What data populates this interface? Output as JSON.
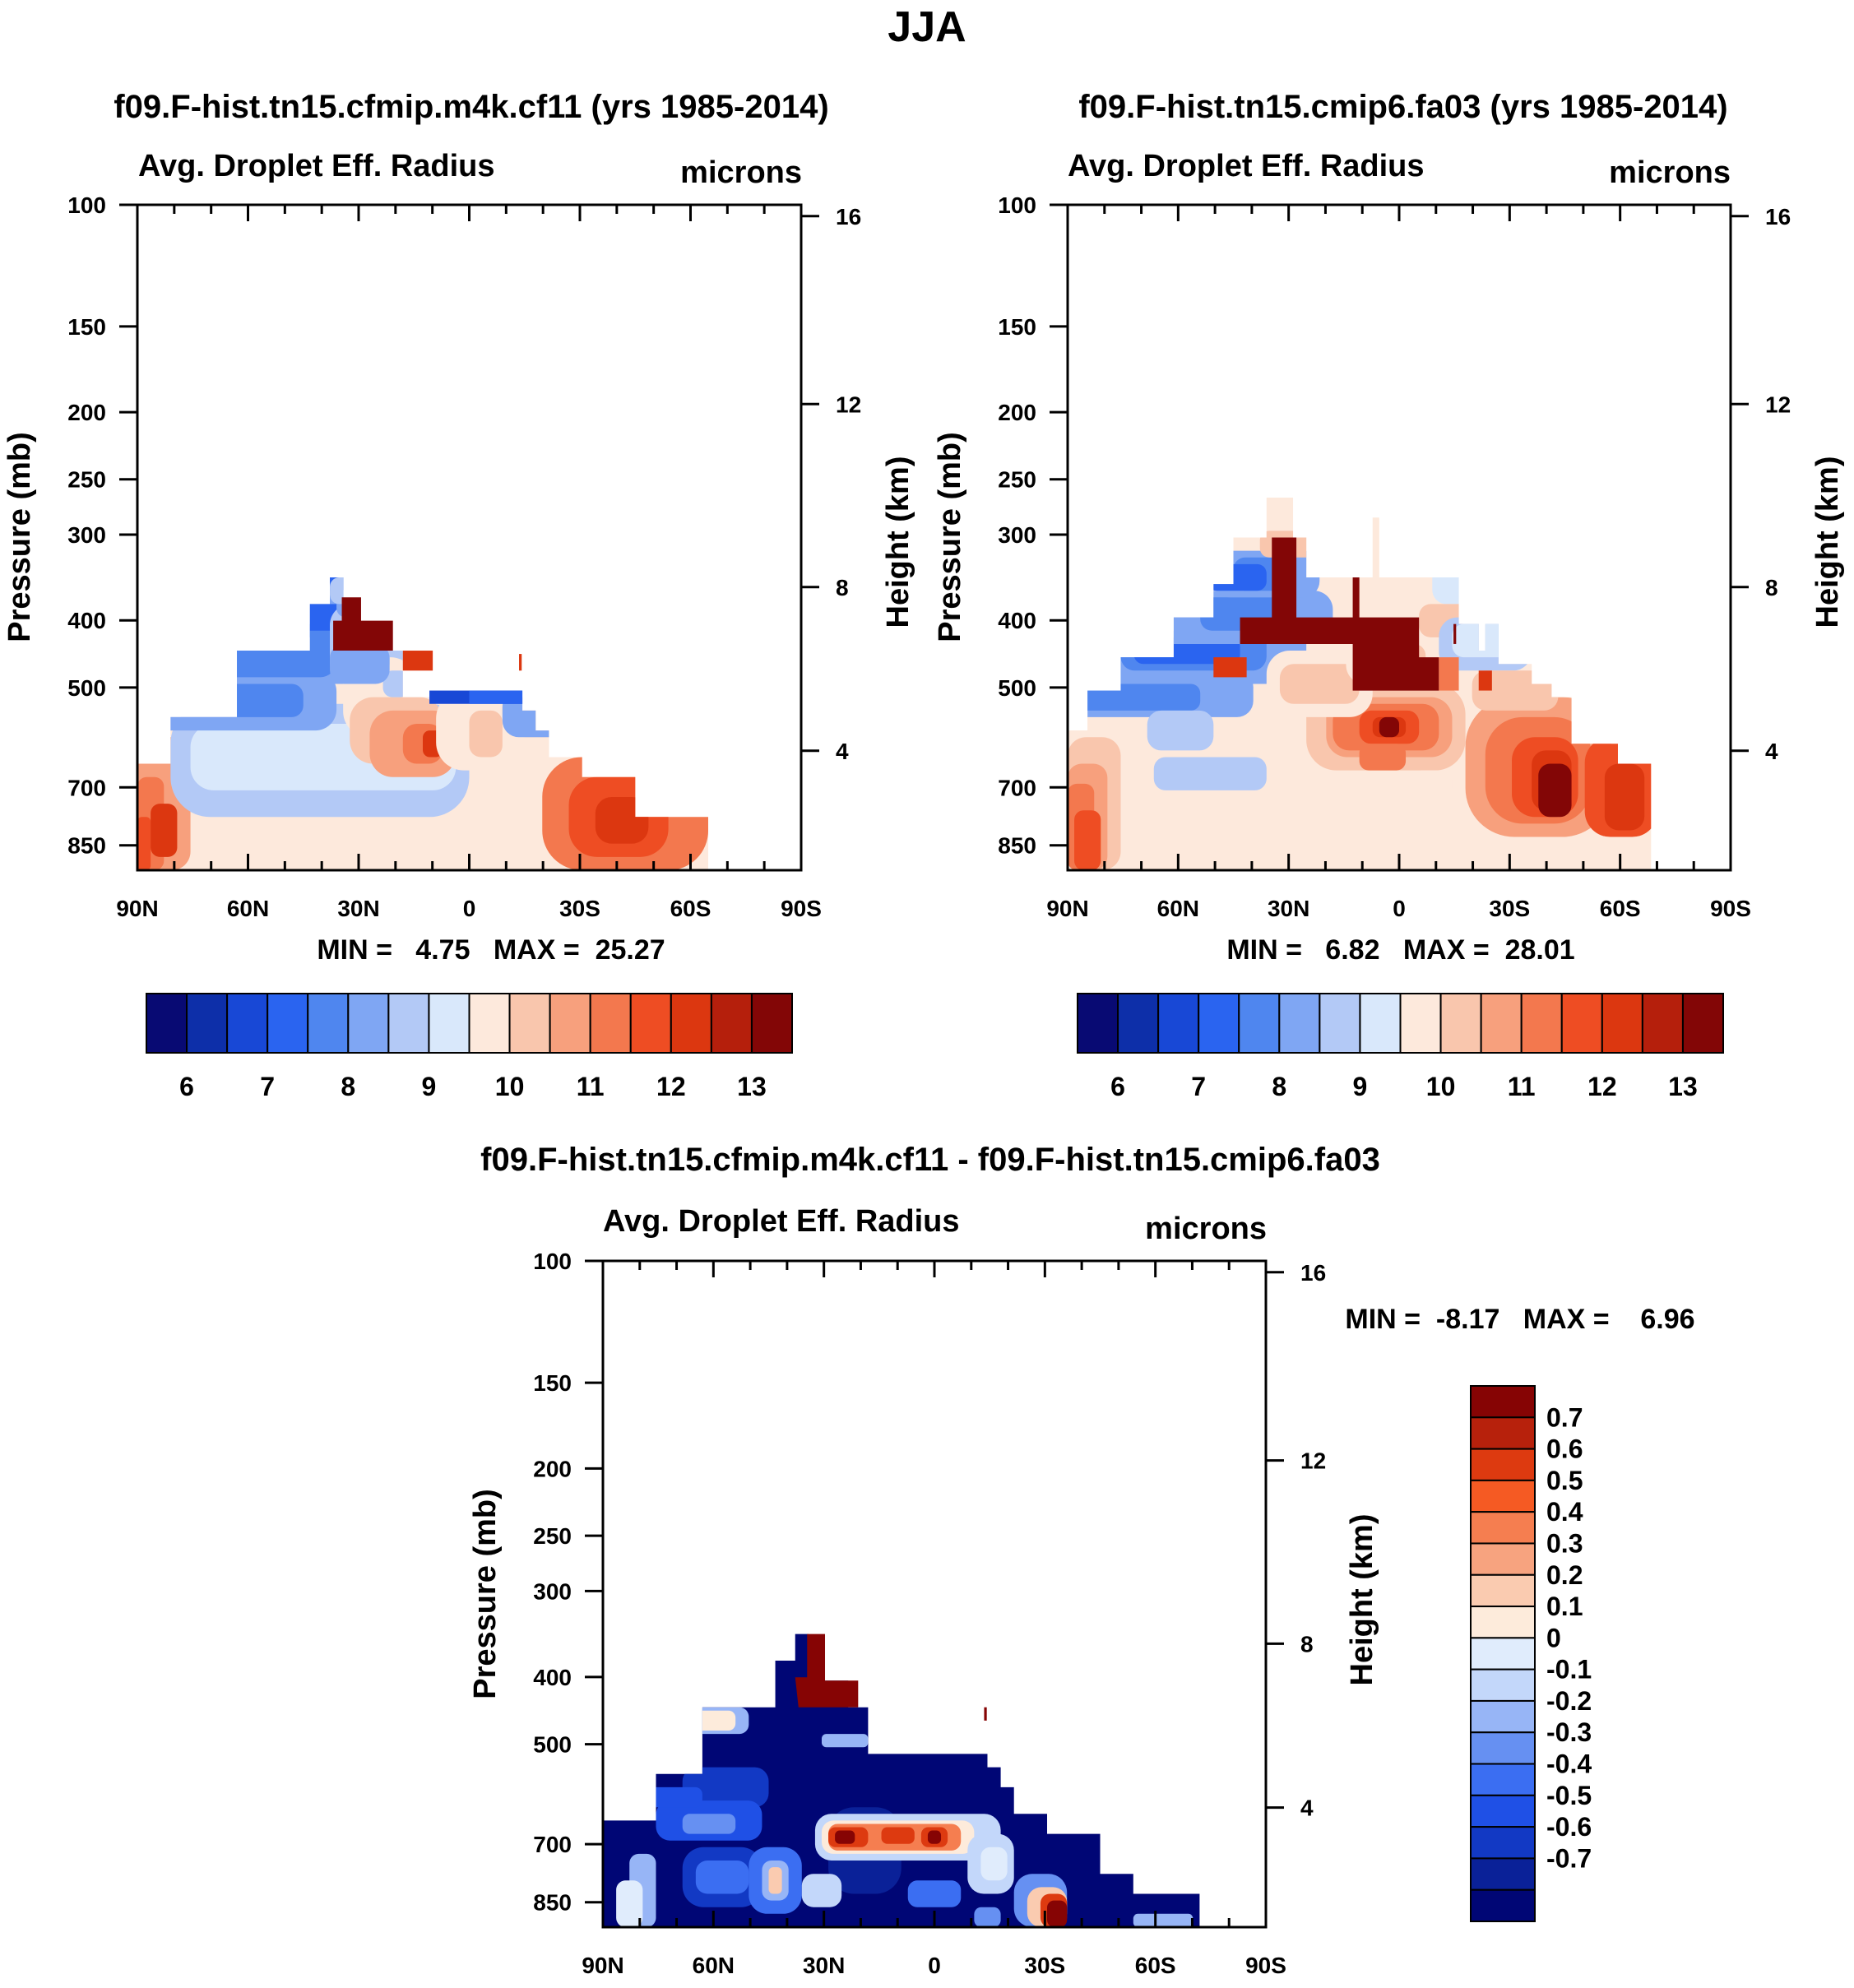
{
  "title": "JJA",
  "colors": {
    "absolute_scale": [
      "#080a73",
      "#0d2fa9",
      "#1848d6",
      "#2a64f0",
      "#4f86ef",
      "#7fa6f3",
      "#b3c9f6",
      "#d9e8fb",
      "#fde9dc",
      "#f9c6ad",
      "#f7a07d",
      "#f3784e",
      "#ee4d23",
      "#dc3710",
      "#b51f0c",
      "#830606"
    ],
    "diff_scale": [
      "#000675",
      "#0a2198",
      "#1239c4",
      "#1f50e6",
      "#3b6ef2",
      "#6690f2",
      "#97b5f6",
      "#c3d7fa",
      "#e0ecfc",
      "#fdebdb",
      "#facbb0",
      "#f7a37f",
      "#f57e50",
      "#f55a23",
      "#dd3a10",
      "#b7210c",
      "#860404"
    ]
  },
  "chart_data": [
    {
      "type": "heatmap",
      "title": "f09.F-hist.tn15.cfmip.m4k.cf11 (yrs 1985-2014)",
      "left_label": "Avg. Droplet Eff. Radius",
      "right_label": "microns",
      "xlabel": "",
      "ylabel": "Pressure (mb)",
      "ylabel_right": "Height (km)",
      "x_ticks": [
        "90N",
        "60N",
        "30N",
        "0",
        "30S",
        "60S",
        "90S"
      ],
      "y_ticks": [
        "100",
        "150",
        "200",
        "250",
        "300",
        "400",
        "500",
        "700",
        "850"
      ],
      "right_ticks": [
        "16",
        "12",
        "8",
        "4"
      ],
      "min_max_text": "MIN =   4.75   MAX =  25.27",
      "colorbar_labels": [
        "6",
        "7",
        "8",
        "9",
        "10",
        "11",
        "12",
        "13"
      ],
      "min": 4.75,
      "max": 25.27
    },
    {
      "type": "heatmap",
      "title": "f09.F-hist.tn15.cmip6.fa03 (yrs 1985-2014)",
      "left_label": "Avg. Droplet Eff. Radius",
      "right_label": "microns",
      "xlabel": "",
      "ylabel": "Pressure (mb)",
      "ylabel_right": "Height (km)",
      "x_ticks": [
        "90N",
        "60N",
        "30N",
        "0",
        "30S",
        "60S",
        "90S"
      ],
      "y_ticks": [
        "100",
        "150",
        "200",
        "250",
        "300",
        "400",
        "500",
        "700",
        "850"
      ],
      "right_ticks": [
        "16",
        "12",
        "8",
        "4"
      ],
      "min_max_text": "MIN =   6.82   MAX =  28.01",
      "colorbar_labels": [
        "6",
        "7",
        "8",
        "9",
        "10",
        "11",
        "12",
        "13"
      ],
      "min": 6.82,
      "max": 28.01
    },
    {
      "type": "heatmap",
      "title": "f09.F-hist.tn15.cfmip.m4k.cf11 - f09.F-hist.tn15.cmip6.fa03",
      "left_label": "Avg. Droplet Eff. Radius",
      "right_label": "microns",
      "xlabel": "",
      "ylabel": "Pressure (mb)",
      "ylabel_right": "Height (km)",
      "x_ticks": [
        "90N",
        "60N",
        "30N",
        "0",
        "30S",
        "60S",
        "90S"
      ],
      "y_ticks": [
        "100",
        "150",
        "200",
        "250",
        "300",
        "400",
        "500",
        "700",
        "850"
      ],
      "right_ticks": [
        "16",
        "12",
        "8",
        "4"
      ],
      "min_max_text": "MIN =  -8.17   MAX =    6.96",
      "colorbar_labels": [
        "0.7",
        "0.6",
        "0.5",
        "0.4",
        "0.3",
        "0.2",
        "0.1",
        "0",
        "-0.1",
        "-0.2",
        "-0.3",
        "-0.4",
        "-0.5",
        "-0.6",
        "-0.7"
      ],
      "min": -8.17,
      "max": 6.96
    }
  ]
}
